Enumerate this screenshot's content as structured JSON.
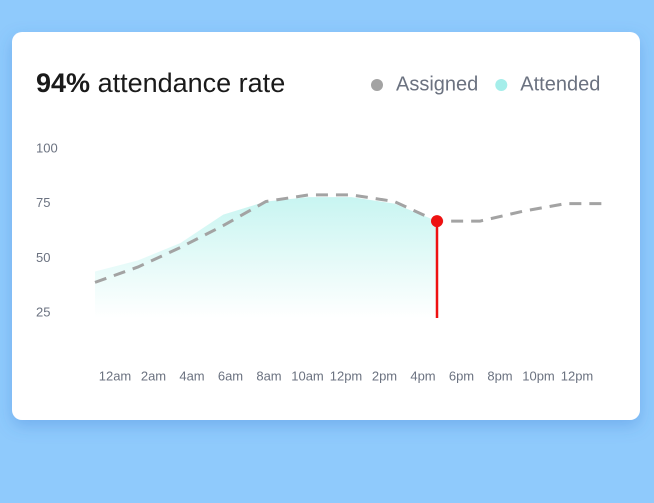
{
  "chart_data": {
    "type": "line",
    "title_value": "94%",
    "title": "attendance rate",
    "categories": [
      "12am",
      "2am",
      "4am",
      "6am",
      "8am",
      "10am",
      "12pm",
      "2pm",
      "4pm",
      "6pm",
      "8pm",
      "10pm",
      "12pm"
    ],
    "series": [
      {
        "name": "Assigned",
        "color": "#a3a3a3",
        "values": [
          39,
          46,
          55,
          65,
          76,
          79,
          79,
          76,
          67,
          67,
          71.5,
          75,
          75
        ]
      },
      {
        "name": "Attended",
        "color": "#a5eeea",
        "values": [
          44,
          49,
          57,
          70,
          76,
          78,
          78,
          75,
          67,
          null,
          null,
          null,
          null
        ]
      }
    ],
    "marker_color": "#ee1111",
    "ylim": [
      25,
      100
    ],
    "yticks": [
      25,
      50,
      75,
      100
    ],
    "legend": "top-right"
  }
}
